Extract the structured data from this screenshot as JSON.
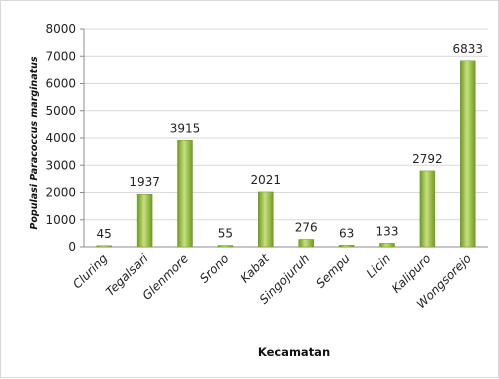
{
  "chart_data": {
    "type": "bar",
    "title": "",
    "xlabel": "Kecamatan",
    "ylabel": "Populasi Paracoccus marginatus",
    "categories": [
      "Cluring",
      "Tegalsari",
      "Glenmore",
      "Srono",
      "Kabat",
      "Singojuruh",
      "Sempu",
      "Licin",
      "Kalipuro",
      "Wongsorejo"
    ],
    "values": [
      45,
      1937,
      3915,
      55,
      2021,
      276,
      63,
      133,
      2792,
      6833
    ],
    "data_labels": [
      "45",
      "1937",
      "3915",
      "55",
      "2021",
      "276",
      "63",
      "133",
      "2792",
      "6833"
    ],
    "ylim": [
      0,
      8000
    ],
    "yticks": [
      0,
      1000,
      2000,
      3000,
      4000,
      5000,
      6000,
      7000,
      8000
    ],
    "ytick_labels": [
      "0",
      "1000",
      "2000",
      "3000",
      "4000",
      "5000",
      "6000",
      "7000",
      "8000"
    ],
    "grid": true,
    "legend": "none",
    "colors": {
      "bar_light": "#c6e07e",
      "bar_dark": "#6f9a22",
      "grid": "#d9d9d9",
      "axis": "#8c8c8c"
    }
  }
}
